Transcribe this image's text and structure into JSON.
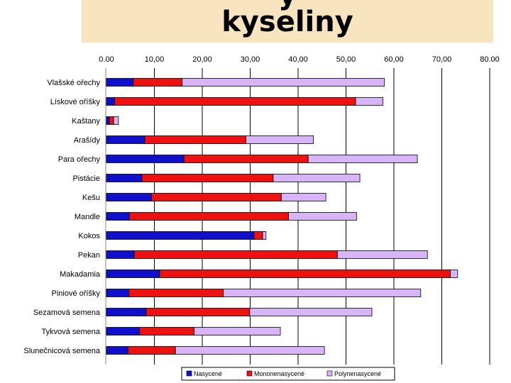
{
  "header": {
    "title_cut": "y",
    "title": "kyseliny"
  },
  "chart_data": {
    "type": "bar",
    "orientation": "horizontal",
    "stacked": true,
    "title": "kyseliny",
    "xlabel": "",
    "ylabel": "",
    "xlim": [
      0,
      80
    ],
    "ticks": [
      "0.00",
      "10,00",
      "20,00",
      "30,00",
      "40,00",
      "50,00",
      "60,00",
      "70,00",
      "80.00"
    ],
    "tick_values": [
      0,
      10,
      20,
      30,
      40,
      50,
      60,
      70,
      80
    ],
    "grid": true,
    "legend_position": "bottom",
    "categories": [
      "Vlašské ořechy",
      "Lískové oříšky",
      "Kaštany",
      "Arašídy",
      "Para ořechy",
      "Pistácie",
      "Kešu",
      "Mandle",
      "Kokos",
      "Pekan",
      "Makadamia",
      "Piniové oříšky",
      "Sezamová semena",
      "Tykvová semena",
      "Slunečnicová semena"
    ],
    "series": [
      {
        "name": "Nasycené",
        "color": "#1010cc",
        "values": [
          5.6,
          1.7,
          0.6,
          8.0,
          16.2,
          7.4,
          9.4,
          4.8,
          30.8,
          5.8,
          11.1,
          4.7,
          8.3,
          6.9,
          4.5
        ]
      },
      {
        "name": "Mononenasycené",
        "color": "#ee1111",
        "values": [
          10.2,
          50.3,
          0.9,
          21.1,
          25.9,
          27.4,
          27.1,
          33.2,
          1.8,
          42.4,
          60.7,
          19.7,
          21.6,
          11.4,
          9.9
        ]
      },
      {
        "name": "Polynenasycené",
        "color": "#d8b4f8",
        "values": [
          42.2,
          5.7,
          1.0,
          14.1,
          22.8,
          18.1,
          9.3,
          14.2,
          0.7,
          18.8,
          1.5,
          41.2,
          25.5,
          18.0,
          31.1
        ]
      }
    ]
  }
}
